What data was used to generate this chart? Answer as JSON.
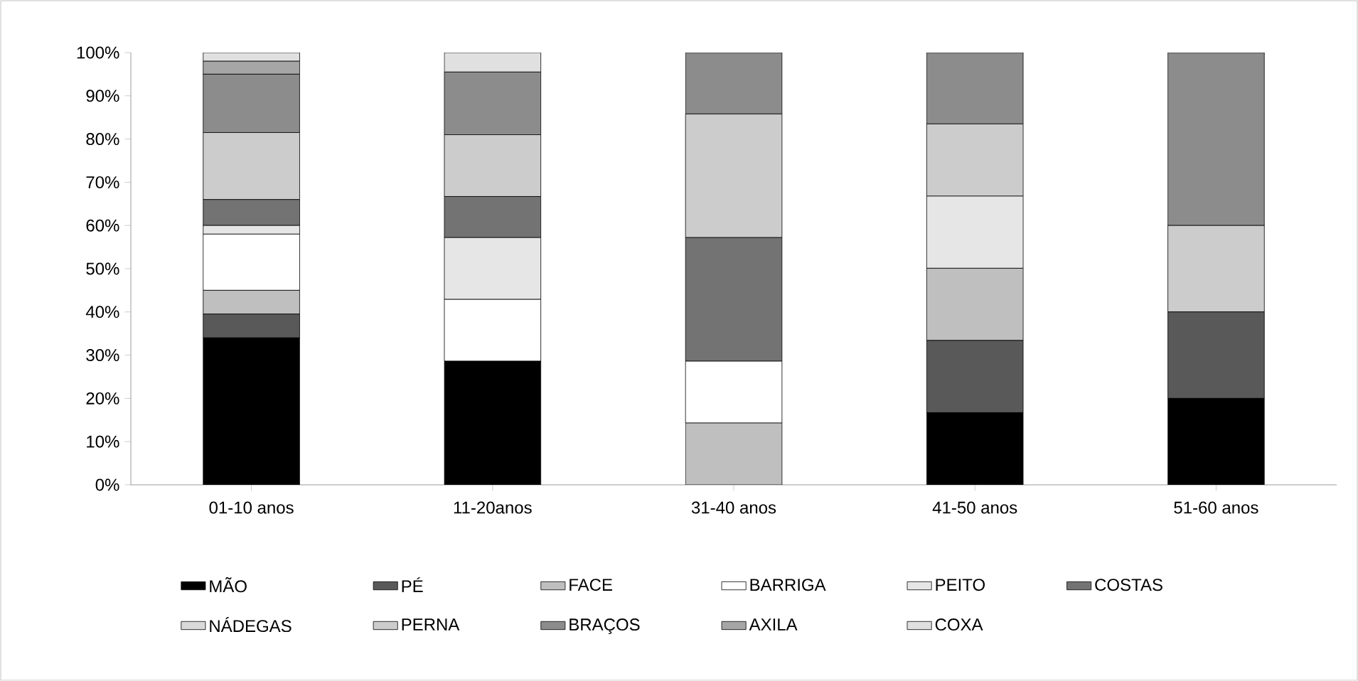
{
  "chart_data": {
    "type": "bar",
    "stacked": true,
    "categories": [
      "01-10 anos",
      "11-20anos",
      "31-40 anos",
      "41-50 anos",
      "51-60 anos"
    ],
    "series": [
      {
        "name": "MÃO",
        "color": "#000000",
        "values": [
          34,
          28.6,
          null,
          16.7,
          20
        ]
      },
      {
        "name": "PÉ",
        "color": "#595959",
        "values": [
          5.5,
          null,
          null,
          16.7,
          20
        ]
      },
      {
        "name": "FACE",
        "color": "#bfbfbf",
        "values": [
          5.5,
          null,
          14.3,
          16.7,
          null
        ]
      },
      {
        "name": "BARRIGA",
        "color": "#ffffff",
        "values": [
          13,
          14.3,
          14.3,
          null,
          null
        ]
      },
      {
        "name": "PEITO",
        "color": "#e6e6e6",
        "values": [
          2,
          14.3,
          null,
          16.7,
          null
        ]
      },
      {
        "name": "COSTAS",
        "color": "#737373",
        "values": [
          6,
          9.5,
          28.6,
          null,
          null
        ]
      },
      {
        "name": "NÁDEGAS",
        "color": "#d9d9d9",
        "values": [
          null,
          null,
          null,
          null,
          null
        ]
      },
      {
        "name": "PERNA",
        "color": "#cccccc",
        "values": [
          15.5,
          14.3,
          28.6,
          16.7,
          20
        ]
      },
      {
        "name": "BRAÇOS",
        "color": "#8c8c8c",
        "values": [
          13.5,
          14.5,
          14.2,
          16.5,
          40
        ]
      },
      {
        "name": "AXILA",
        "color": "#a6a6a6",
        "values": [
          3,
          null,
          null,
          null,
          null
        ]
      },
      {
        "name": "COXA",
        "color": "#e0e0e0",
        "values": [
          2,
          4.5,
          null,
          null,
          null
        ]
      }
    ],
    "ylim": [
      0,
      100
    ],
    "yticks": [
      {
        "value": 0,
        "label": "0%"
      },
      {
        "value": 10,
        "label": "10%"
      },
      {
        "value": 20,
        "label": "20%"
      },
      {
        "value": 30,
        "label": "30%"
      },
      {
        "value": 40,
        "label": "40%"
      },
      {
        "value": 50,
        "label": "50%"
      },
      {
        "value": 60,
        "label": "60%"
      },
      {
        "value": 70,
        "label": "70%"
      },
      {
        "value": 80,
        "label": "80%"
      },
      {
        "value": 90,
        "label": "90%"
      },
      {
        "value": 100,
        "label": "100%"
      }
    ],
    "grid": false,
    "legend": "bottom"
  }
}
